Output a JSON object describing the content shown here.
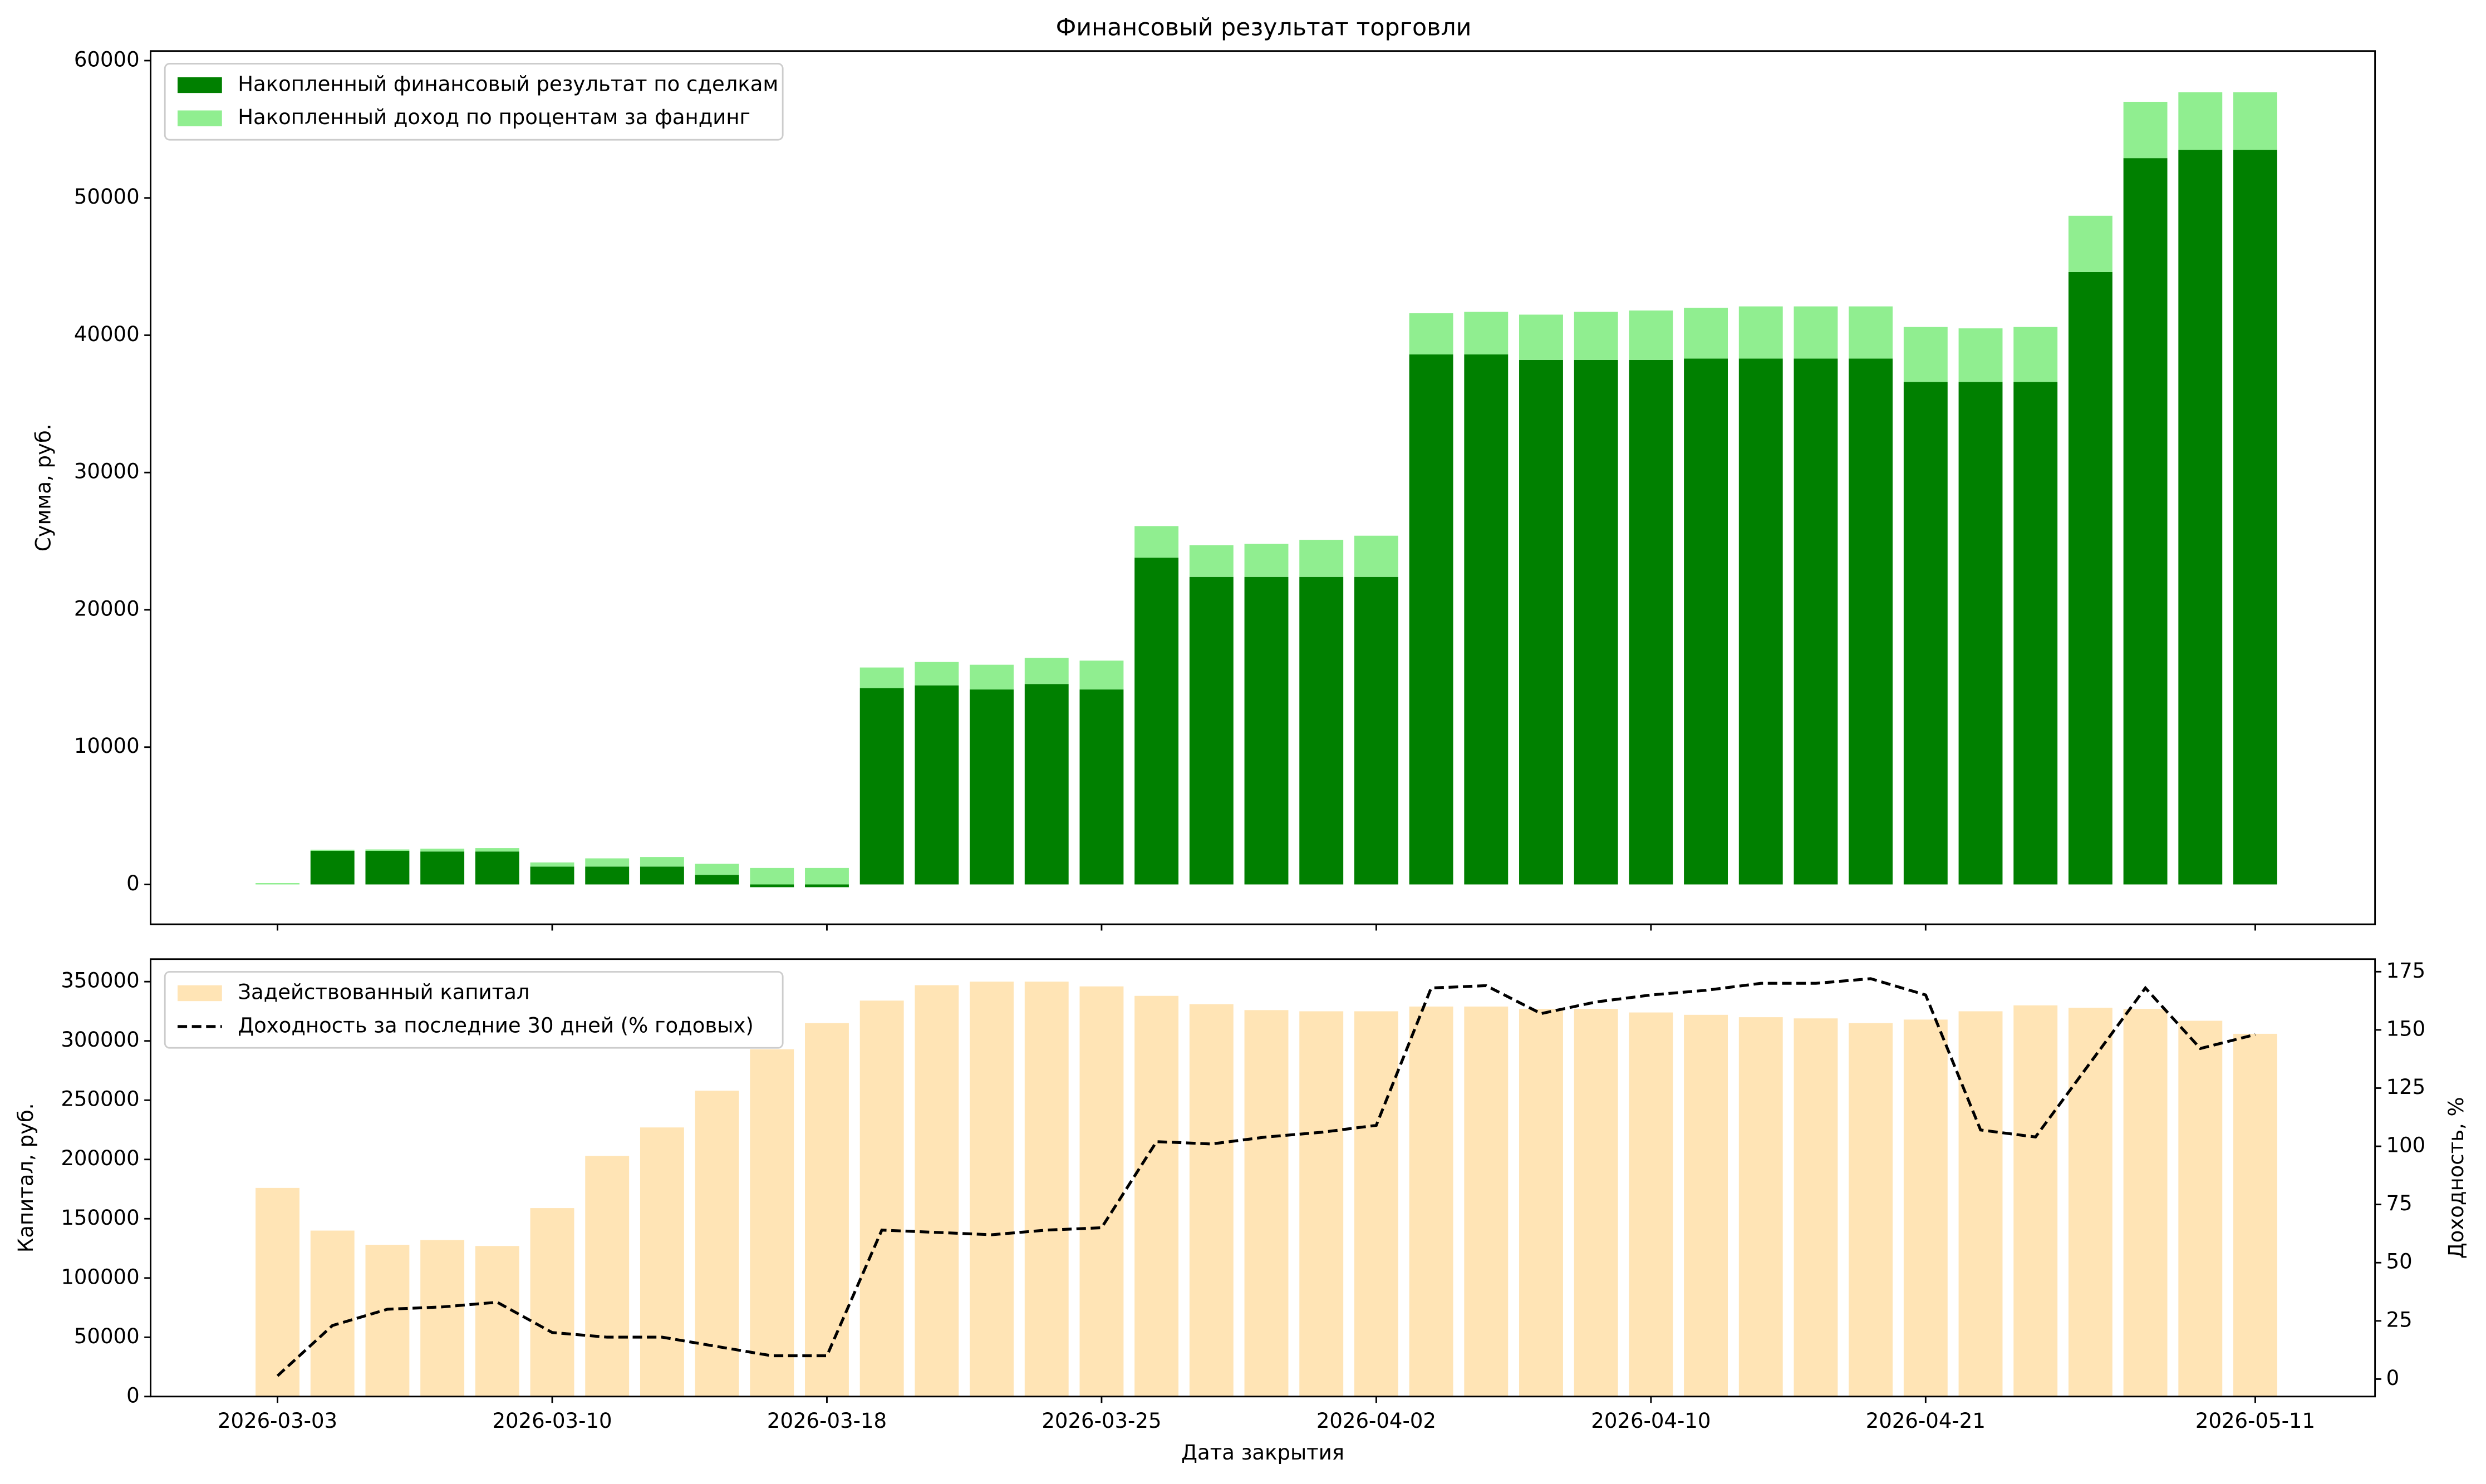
{
  "chart_data": [
    {
      "type": "bar",
      "title": "Финансовый результат торговли",
      "ylabel": "Сумма, руб.",
      "ylim": [
        -2900,
        60700
      ],
      "yticks": [
        0,
        10000,
        20000,
        30000,
        40000,
        50000,
        60000
      ],
      "legend": "upper left",
      "stacked": true,
      "series": [
        {
          "name": "Накопленный финансовый результат по сделкам",
          "color": "#008000",
          "values": [
            0,
            2450,
            2450,
            2400,
            2400,
            1300,
            1300,
            1300,
            700,
            -200,
            -200,
            14300,
            14500,
            14200,
            14600,
            14200,
            23800,
            22400,
            22400,
            22400,
            22400,
            38600,
            38600,
            38200,
            38200,
            38200,
            38300,
            38300,
            38300,
            38300,
            36600,
            36600,
            36600,
            44600,
            52900,
            53500,
            53500
          ]
        },
        {
          "name": "Накопленный доход по процентам за фандинг",
          "color": "#90ee90",
          "values": [
            100,
            80,
            100,
            200,
            250,
            300,
            600,
            700,
            800,
            1200,
            1200,
            1500,
            1700,
            1800,
            1900,
            2100,
            2300,
            2300,
            2400,
            2700,
            3000,
            3000,
            3100,
            3300,
            3500,
            3600,
            3700,
            3800,
            3800,
            3800,
            4000,
            3900,
            4000,
            4100,
            4100,
            4200,
            4200
          ]
        }
      ]
    },
    {
      "type": "bar",
      "xlabel": "Дата закрытия",
      "ylabel": "Капитал, руб.",
      "y2label": "Доходность, %",
      "categories": [
        "2026-03-03",
        null,
        null,
        null,
        null,
        "2026-03-10",
        null,
        null,
        null,
        null,
        "2026-03-18",
        null,
        null,
        null,
        null,
        "2026-03-25",
        null,
        null,
        null,
        null,
        "2026-04-02",
        null,
        null,
        null,
        null,
        "2026-04-10",
        null,
        null,
        null,
        null,
        "2026-04-21",
        null,
        null,
        null,
        null,
        null,
        "2026-05-11"
      ],
      "ylim": [
        0,
        369000
      ],
      "yticks": [
        0,
        50000,
        100000,
        150000,
        200000,
        250000,
        300000,
        350000
      ],
      "y2lim": [
        -7.5,
        180.4
      ],
      "y2ticks": [
        0,
        25,
        50,
        75,
        100,
        125,
        150,
        175
      ],
      "legend": "upper left",
      "series": [
        {
          "name": "Задействованный капитал",
          "type": "bar",
          "color": "#ffe4b5",
          "values": [
            176000,
            140000,
            128000,
            132000,
            127000,
            159000,
            203000,
            227000,
            258000,
            293000,
            315000,
            334000,
            347000,
            350000,
            350000,
            346000,
            338000,
            331000,
            326000,
            325000,
            325000,
            329000,
            329000,
            327000,
            327000,
            324000,
            322000,
            320000,
            319000,
            315000,
            318000,
            325000,
            330000,
            328000,
            327000,
            317000,
            306000
          ]
        },
        {
          "name": "Доходность за последние 30 дней (% годовых)",
          "type": "line",
          "axis": "y2",
          "color": "#000000",
          "dashed": true,
          "values": [
            1.4,
            23,
            30,
            31,
            33,
            20,
            18,
            18,
            14,
            10,
            10,
            64,
            63,
            62,
            64,
            65,
            102,
            101,
            104,
            106,
            109,
            168,
            169,
            157,
            162,
            165,
            167,
            170,
            170,
            172,
            165,
            107,
            104,
            136,
            168,
            142,
            148
          ]
        }
      ]
    }
  ]
}
